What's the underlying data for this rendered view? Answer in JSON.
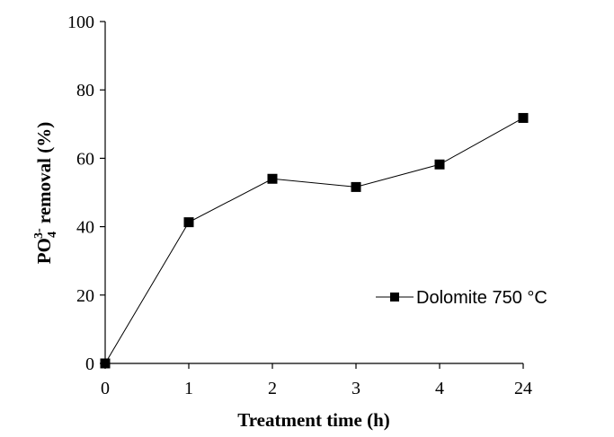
{
  "chart_data": {
    "type": "line",
    "title": "",
    "xlabel": "Treatment time (h)",
    "ylabel": {
      "main": "PO",
      "sub": "4",
      "sup": "3-",
      "rest": " removal (%)"
    },
    "categories": [
      "0",
      "1",
      "2",
      "3",
      "4",
      "24"
    ],
    "series": [
      {
        "name": "Dolomite 750 °C",
        "values": [
          0,
          41.3,
          54.0,
          51.6,
          58.2,
          71.8
        ],
        "color": "#000000",
        "marker": "square"
      }
    ],
    "ylim": [
      0,
      100
    ],
    "yticks": [
      "0",
      "20",
      "40",
      "60",
      "80",
      "100"
    ],
    "grid": false,
    "legend": "right"
  }
}
